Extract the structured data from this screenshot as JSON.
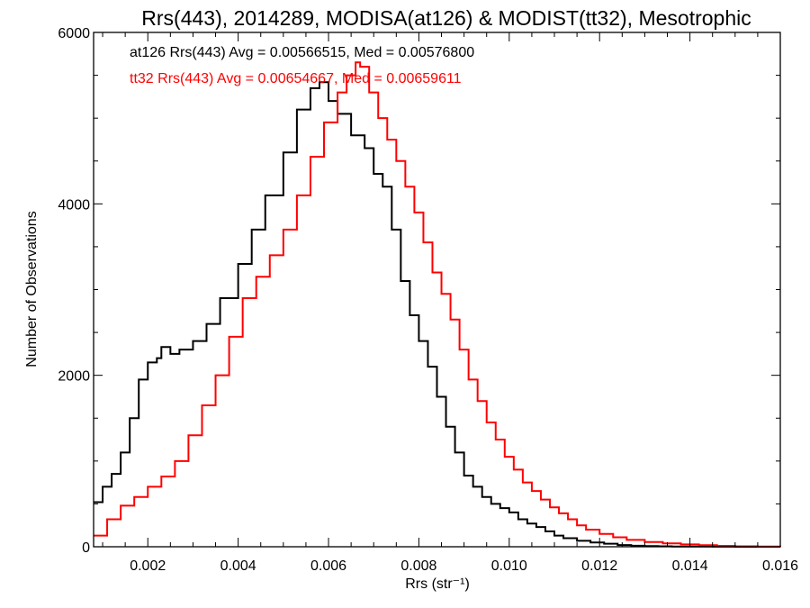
{
  "chart_data": {
    "type": "line",
    "title": "Rrs(443), 2014289, MODISA(at126) & MODIST(tt32), Mesotrophic",
    "xlabel": "Rrs (str⁻¹)",
    "ylabel": "Number of Observations",
    "xlim": [
      0.0008,
      0.016
    ],
    "ylim": [
      0,
      6000
    ],
    "xticks": [
      0.002,
      0.004,
      0.006,
      0.008,
      0.01,
      0.012,
      0.014,
      0.016
    ],
    "xtick_labels": [
      "0.002",
      "0.004",
      "0.006",
      "0.008",
      "0.010",
      "0.012",
      "0.014",
      "0.016"
    ],
    "yticks": [
      0,
      2000,
      4000,
      6000
    ],
    "ytick_labels": [
      "0",
      "2000",
      "4000",
      "6000"
    ],
    "grid": false,
    "step": true,
    "series": [
      {
        "name": "at126",
        "color": "#000000",
        "x": [
          0.0008,
          0.001,
          0.0012,
          0.0014,
          0.0016,
          0.0018,
          0.002,
          0.0022,
          0.0023,
          0.0025,
          0.0027,
          0.003,
          0.0033,
          0.0036,
          0.004,
          0.0043,
          0.0046,
          0.005,
          0.0053,
          0.0056,
          0.0058,
          0.006,
          0.0062,
          0.0065,
          0.0068,
          0.007,
          0.0072,
          0.0074,
          0.0076,
          0.0078,
          0.008,
          0.0082,
          0.0084,
          0.0086,
          0.0088,
          0.009,
          0.0092,
          0.0094,
          0.0096,
          0.0098,
          0.01,
          0.0102,
          0.0104,
          0.0106,
          0.0108,
          0.011,
          0.0112,
          0.0115,
          0.0118,
          0.0121,
          0.0124,
          0.0127,
          0.013,
          0.0133,
          0.0136,
          0.014,
          0.0145,
          0.015,
          0.016
        ],
        "values": [
          520,
          700,
          850,
          1100,
          1500,
          1950,
          2150,
          2200,
          2330,
          2250,
          2300,
          2400,
          2600,
          2900,
          3300,
          3700,
          4100,
          4600,
          5100,
          5350,
          5420,
          5200,
          5050,
          4800,
          4650,
          4350,
          4200,
          3700,
          3100,
          2700,
          2400,
          2100,
          1750,
          1400,
          1100,
          830,
          700,
          580,
          500,
          450,
          400,
          320,
          270,
          230,
          180,
          130,
          100,
          70,
          50,
          35,
          20,
          12,
          8,
          5,
          3,
          2,
          1,
          0,
          0
        ]
      },
      {
        "name": "tt32",
        "color": "#ff0000",
        "x": [
          0.0008,
          0.0011,
          0.0014,
          0.0017,
          0.002,
          0.0023,
          0.0026,
          0.0029,
          0.0032,
          0.0035,
          0.0038,
          0.0041,
          0.0044,
          0.0047,
          0.005,
          0.0053,
          0.0056,
          0.0059,
          0.0062,
          0.0064,
          0.0066,
          0.0067,
          0.0069,
          0.0071,
          0.0073,
          0.0075,
          0.0077,
          0.0079,
          0.0081,
          0.0083,
          0.0085,
          0.0087,
          0.0089,
          0.0091,
          0.0093,
          0.0095,
          0.0097,
          0.0099,
          0.0101,
          0.0103,
          0.0105,
          0.0107,
          0.0109,
          0.0111,
          0.0113,
          0.0115,
          0.0117,
          0.012,
          0.0123,
          0.0126,
          0.013,
          0.0134,
          0.0138,
          0.0142,
          0.0146,
          0.015,
          0.0155,
          0.016
        ],
        "values": [
          130,
          320,
          480,
          580,
          700,
          820,
          1000,
          1300,
          1650,
          2000,
          2450,
          2900,
          3150,
          3400,
          3700,
          4100,
          4550,
          4950,
          5300,
          5500,
          5650,
          5600,
          5300,
          5000,
          4750,
          4500,
          4200,
          3900,
          3550,
          3200,
          2950,
          2650,
          2300,
          1950,
          1700,
          1450,
          1250,
          1050,
          900,
          750,
          650,
          550,
          460,
          390,
          320,
          250,
          200,
          150,
          110,
          80,
          55,
          40,
          28,
          18,
          10,
          5,
          2,
          0
        ]
      }
    ],
    "annotations": [
      {
        "text": "at126 Rrs(443) Avg = 0.00566515, Med = 0.00576800",
        "color": "#000000"
      },
      {
        "text": "tt32 Rrs(443) Avg = 0.00654667, Med = 0.00659611",
        "color": "#ff0000"
      }
    ]
  }
}
